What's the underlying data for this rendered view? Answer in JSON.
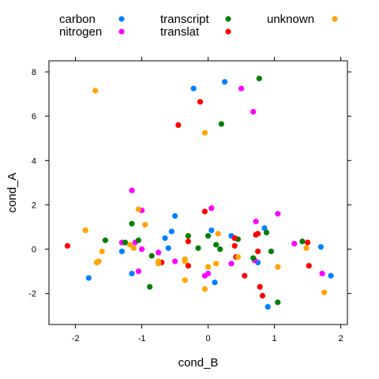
{
  "chart_data": {
    "type": "scatter",
    "xlabel": "cond_B",
    "ylabel": "cond_A",
    "xlim": [
      -2.4,
      2.1
    ],
    "ylim": [
      -3.4,
      8.5
    ],
    "xticks": [
      -2,
      -1,
      0,
      1,
      2
    ],
    "yticks": [
      -2,
      0,
      2,
      4,
      6,
      8
    ],
    "legend_position": "top",
    "series": [
      {
        "name": "carbon",
        "color": "#0080ff",
        "points": [
          [
            -0.22,
            7.25
          ],
          [
            0.25,
            7.55
          ],
          [
            -0.5,
            1.5
          ],
          [
            -0.65,
            0.5
          ],
          [
            -0.55,
            0.8
          ],
          [
            -0.6,
            0.05
          ],
          [
            -1.3,
            -0.1
          ],
          [
            -1.15,
            -1.1
          ],
          [
            -1.8,
            -1.3
          ],
          [
            0.05,
            0.85
          ],
          [
            0.35,
            0.6
          ],
          [
            0.1,
            -1.5
          ],
          [
            0.85,
            0.95
          ],
          [
            0.75,
            -0.6
          ],
          [
            0.9,
            -2.6
          ],
          [
            1.7,
            0.1
          ],
          [
            1.85,
            -1.2
          ]
        ]
      },
      {
        "name": "nitrogen",
        "color": "#ff00ff",
        "points": [
          [
            -1.15,
            2.65
          ],
          [
            -1.0,
            1.75
          ],
          [
            -1.3,
            0.3
          ],
          [
            -1.1,
            0.3
          ],
          [
            -1.0,
            0.0
          ],
          [
            -0.75,
            -0.15
          ],
          [
            -0.5,
            -0.55
          ],
          [
            -1.05,
            -1.0
          ],
          [
            -0.05,
            -1.2
          ],
          [
            0.0,
            -1.1
          ],
          [
            0.05,
            1.85
          ],
          [
            0.5,
            7.25
          ],
          [
            0.68,
            6.2
          ],
          [
            0.72,
            1.25
          ],
          [
            0.7,
            -0.5
          ],
          [
            0.35,
            -0.65
          ],
          [
            1.05,
            1.6
          ],
          [
            1.3,
            0.25
          ],
          [
            1.72,
            -1.1
          ]
        ]
      },
      {
        "name": "transcript",
        "color": "#008000",
        "points": [
          [
            0.77,
            7.7
          ],
          [
            0.2,
            5.65
          ],
          [
            -1.55,
            0.4
          ],
          [
            -1.25,
            0.3
          ],
          [
            -1.15,
            1.15
          ],
          [
            -1.05,
            0.4
          ],
          [
            -0.85,
            -0.3
          ],
          [
            -0.88,
            -1.7
          ],
          [
            -0.3,
            0.6
          ],
          [
            -0.15,
            0.05
          ],
          [
            0.0,
            0.6
          ],
          [
            0.12,
            0.2
          ],
          [
            0.18,
            0.0
          ],
          [
            0.45,
            0.45
          ],
          [
            0.68,
            -0.4
          ],
          [
            0.88,
            0.75
          ],
          [
            0.95,
            -0.1
          ],
          [
            1.05,
            -2.4
          ],
          [
            1.42,
            0.35
          ]
        ]
      },
      {
        "name": "translat",
        "color": "#ff0000",
        "points": [
          [
            -0.12,
            6.65
          ],
          [
            -0.45,
            5.6
          ],
          [
            -0.05,
            1.7
          ],
          [
            -2.12,
            0.15
          ],
          [
            -0.3,
            0.35
          ],
          [
            -0.3,
            -0.75
          ],
          [
            -0.7,
            -0.6
          ],
          [
            0.4,
            0.5
          ],
          [
            0.4,
            0.15
          ],
          [
            0.42,
            -0.35
          ],
          [
            0.55,
            -1.2
          ],
          [
            0.72,
            0.65
          ],
          [
            0.75,
            0.7
          ],
          [
            0.75,
            -0.1
          ],
          [
            0.78,
            -1.7
          ],
          [
            0.82,
            -2.1
          ],
          [
            1.5,
            0.3
          ],
          [
            1.52,
            -0.75
          ]
        ]
      },
      {
        "name": "unknown",
        "color": "#ffa500",
        "points": [
          [
            -1.7,
            7.15
          ],
          [
            -0.05,
            5.25
          ],
          [
            -1.85,
            0.85
          ],
          [
            -1.05,
            1.8
          ],
          [
            -0.95,
            1.1
          ],
          [
            -1.6,
            -0.1
          ],
          [
            -1.65,
            -0.55
          ],
          [
            -1.68,
            -0.6
          ],
          [
            -1.18,
            0.2
          ],
          [
            -1.12,
            0.05
          ],
          [
            -0.75,
            -0.55
          ],
          [
            -0.75,
            -0.65
          ],
          [
            -0.35,
            -0.45
          ],
          [
            -0.35,
            -0.55
          ],
          [
            -0.35,
            -1.4
          ],
          [
            -0.05,
            -1.8
          ],
          [
            0.0,
            -0.8
          ],
          [
            0.12,
            -0.65
          ],
          [
            0.15,
            0.7
          ],
          [
            0.45,
            -0.35
          ],
          [
            1.05,
            -0.8
          ],
          [
            1.48,
            0.05
          ],
          [
            1.75,
            -1.95
          ]
        ]
      }
    ]
  }
}
